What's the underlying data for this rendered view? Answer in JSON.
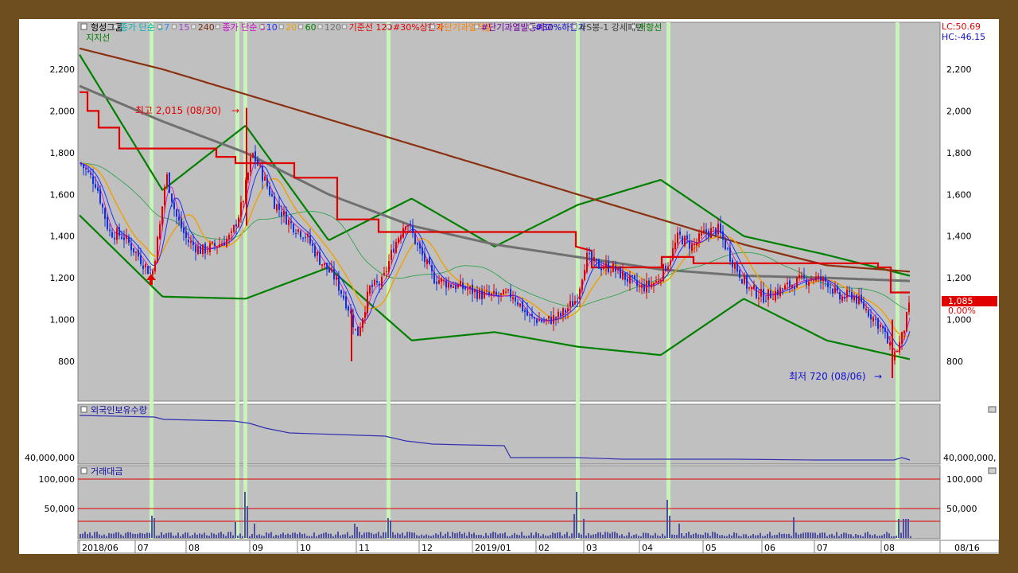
{
  "legend": {
    "items": [
      {
        "label": "헝성그룹",
        "color": "#000000"
      },
      {
        "label": "종가 단순 3",
        "color": "#00b4b4"
      },
      {
        "label": "7",
        "color": "#2a8cff"
      },
      {
        "label": "15",
        "color": "#a040d0"
      },
      {
        "label": "240",
        "color": "#7a2e10"
      },
      {
        "label": "종가 단순 5",
        "color": "#d000d0"
      },
      {
        "label": "10",
        "color": "#1e2cff"
      },
      {
        "label": "20",
        "color": "#f0a000"
      },
      {
        "label": "60",
        "color": "#008000"
      },
      {
        "label": "120",
        "color": "#707070"
      },
      {
        "label": "기준선 120",
        "color": "#e00000"
      },
      {
        "label": "#30%상한가",
        "color": "#e00000"
      },
      {
        "label": "#단기과열적출",
        "color": "#ff8000"
      },
      {
        "label": "#단기과열발동예고",
        "color": "#7000a0"
      },
      {
        "label": "#30%하한가",
        "color": "#1010d0"
      },
      {
        "label": "#S봉-1 강세패턴",
        "color": "#404040"
      },
      {
        "label": "저항선",
        "color": "#008000"
      }
    ],
    "second_line": "지지선",
    "lc": "LC:50.69",
    "hc": "HC:-46.15"
  },
  "price_axis": {
    "ticks": [
      "2,200",
      "2,000",
      "1,800",
      "1,600",
      "1,400",
      "1,200",
      "1,000",
      "800"
    ],
    "current_price": "1,085",
    "current_change": "0.00%"
  },
  "annotations": {
    "high": "최고 2,015 (08/30)",
    "low": "최저 720 (08/06)"
  },
  "foreign_panel": {
    "title": "외국인보유수량",
    "tick": "40,000,000",
    "tick_right": "40,000,000,"
  },
  "volume_panel": {
    "title": "거래대금",
    "ticks": [
      "100,000",
      "50,000"
    ]
  },
  "date_axis": {
    "labels": [
      "2018/06",
      "07",
      "08",
      "09",
      "10",
      "11",
      "12",
      "2019/01",
      "02",
      "03",
      "04",
      "05",
      "06",
      "07",
      "08"
    ],
    "right_label": "08/16"
  },
  "chart_data": {
    "type": "candlestick",
    "title": "헝성그룹",
    "y_range": [
      700,
      2300
    ],
    "x_months": [
      "2018/06",
      "07",
      "08",
      "09",
      "10",
      "11",
      "12",
      "2019/01",
      "02",
      "03",
      "04",
      "05",
      "06",
      "07",
      "08"
    ],
    "high": {
      "value": 2015,
      "date": "08/30"
    },
    "low": {
      "value": 720,
      "date": "08/06"
    },
    "last_close": 1085,
    "signal_days": [
      "07",
      "08/30",
      "11",
      "03",
      "04",
      "08"
    ],
    "series_approx": [
      {
        "name": "240",
        "values": [
          2300,
          2200,
          2080,
          1960,
          1840,
          1720,
          1600,
          1480,
          1360,
          1260,
          1230
        ]
      },
      {
        "name": "120",
        "values": [
          2120,
          1950,
          1800,
          1600,
          1450,
          1360,
          1300,
          1240,
          1210,
          1200,
          1185
        ]
      },
      {
        "name": "기준선 120",
        "values": [
          2100,
          1820,
          1750,
          1420,
          1420,
          1420,
          1420,
          1250,
          1300,
          1230,
          1120
        ]
      },
      {
        "name": "저항선",
        "values": [
          2270,
          1620,
          1930,
          1380,
          1580,
          1350,
          1550,
          1670,
          1400,
          1310,
          1210
        ]
      },
      {
        "name": "지지선",
        "values": [
          1500,
          1110,
          1100,
          1250,
          900,
          940,
          870,
          830,
          1100,
          900,
          810
        ]
      }
    ],
    "foreign_holdings_tick": 40000000,
    "trading_value_ticks": [
      50000,
      100000
    ]
  }
}
